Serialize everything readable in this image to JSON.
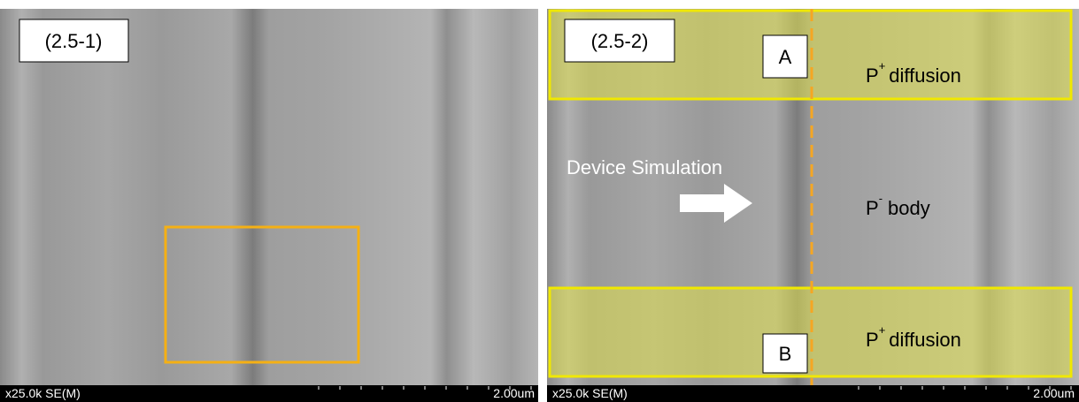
{
  "panels": [
    {
      "label": "(2.5-1)",
      "magnification": "x25.0k SE(M)",
      "scale": "2.00um"
    },
    {
      "label": "(2.5-2)",
      "magnification": "x25.0k SE(M)",
      "scale": "2.00um",
      "regions": [
        {
          "marker": "A",
          "base": "P",
          "sup": "+",
          "text": "diffusion"
        },
        {
          "base": "P",
          "sup": "-",
          "text": "body"
        },
        {
          "marker": "B",
          "base": "P",
          "sup": "+",
          "text": "diffusion"
        }
      ],
      "arrow_label": "Device Simulation"
    }
  ]
}
